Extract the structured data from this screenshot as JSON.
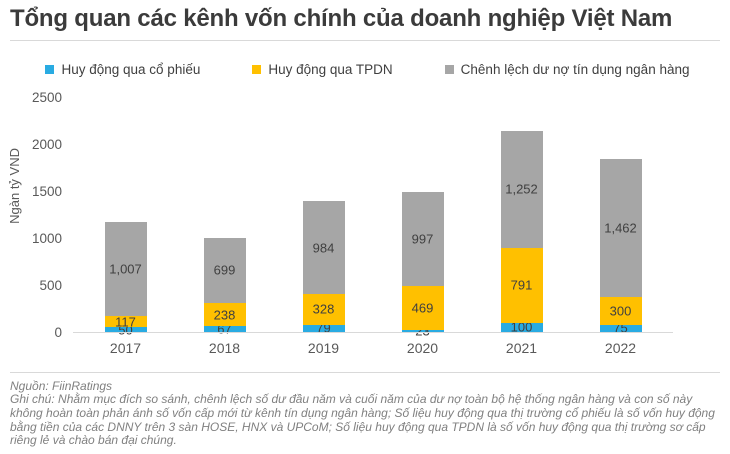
{
  "title": "Tổng quan các kênh vốn chính của doanh nghiệp Việt Nam",
  "chart_data": {
    "type": "bar",
    "stacked": true,
    "title": "Tổng quan các kênh vốn chính của doanh nghiệp Việt Nam",
    "ylabel": "Ngàn tỷ VND",
    "ylim": [
      0,
      2500
    ],
    "yticks": [
      0,
      500,
      1000,
      1500,
      2000,
      2500
    ],
    "grid": false,
    "legend_position": "top",
    "categories": [
      "2017",
      "2018",
      "2019",
      "2020",
      "2021",
      "2022"
    ],
    "series": [
      {
        "name": "Huy động qua cổ phiếu",
        "color": "#29ABE2",
        "values": [
          50,
          67,
          79,
          23,
          100,
          75
        ]
      },
      {
        "name": "Huy động qua TPDN",
        "color": "#FFC000",
        "values": [
          117,
          238,
          328,
          469,
          791,
          300
        ]
      },
      {
        "name": "Chênh lệch dư nợ tín dụng ngân hàng",
        "color": "#A6A6A6",
        "values": [
          1007,
          699,
          984,
          997,
          1252,
          1462
        ]
      }
    ]
  },
  "footer": {
    "source": "Nguồn: FiinRatings",
    "note": "Ghi chú: Nhằm mục đích so sánh, chênh lệch số dư đầu năm và cuối năm của dư nợ toàn bộ hệ thống ngân hàng và con số này không hoàn toàn phản ánh số vốn cấp mới từ kênh tín dụng ngân hàng; Số liệu huy động qua thị trường cổ phiếu là số vốn huy động bằng tiền của các DNNY trên 3 sàn HOSE, HNX và UPCoM; Số liệu huy động qua TPDN là số vốn huy động qua thị trường sơ cấp riêng lẻ và chào bán đại chúng."
  },
  "colors": {
    "title_text": "#3B3B3B",
    "axis_text": "#595959",
    "divider": "#D9D9D9",
    "note_text": "#808080",
    "data_label_text": "#404040"
  }
}
